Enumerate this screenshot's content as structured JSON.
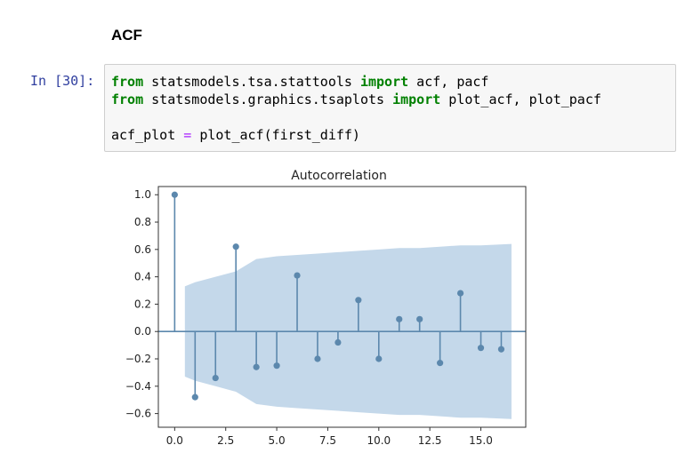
{
  "markdown": {
    "heading": "ACF"
  },
  "cell": {
    "prompt": "In [30]:",
    "code_lines": [
      [
        {
          "t": "from",
          "k": "kw"
        },
        {
          "t": " statsmodels.tsa.stattools ",
          "k": ""
        },
        {
          "t": "import",
          "k": "kw"
        },
        {
          "t": " acf, pacf",
          "k": ""
        }
      ],
      [
        {
          "t": "from",
          "k": "kw"
        },
        {
          "t": " statsmodels.graphics.tsaplots ",
          "k": ""
        },
        {
          "t": "import",
          "k": "kw"
        },
        {
          "t": " plot_acf, plot_pacf",
          "k": ""
        }
      ],
      [],
      [
        {
          "t": "acf_plot ",
          "k": ""
        },
        {
          "t": "=",
          "k": "op"
        },
        {
          "t": " plot_acf(first_diff)",
          "k": ""
        }
      ]
    ]
  },
  "chart_data": {
    "type": "stem",
    "title": "Autocorrelation",
    "xlabel": "",
    "ylabel": "",
    "xlim": [
      -0.8,
      17.2
    ],
    "ylim": [
      -0.7,
      1.06
    ],
    "xticks": [
      0.0,
      2.5,
      5.0,
      7.5,
      10.0,
      12.5,
      15.0
    ],
    "xtick_labels": [
      "0.0",
      "2.5",
      "5.0",
      "7.5",
      "10.0",
      "12.5",
      "15.0"
    ],
    "yticks": [
      1.0,
      0.8,
      0.6,
      0.4,
      0.2,
      0.0,
      -0.2,
      -0.4,
      -0.6
    ],
    "ytick_labels": [
      "1.0",
      "0.8",
      "0.6",
      "0.4",
      "0.2",
      "0.0",
      "−0.2",
      "−0.4",
      "−0.6"
    ],
    "grid": false,
    "lags": [
      0,
      1,
      2,
      3,
      4,
      5,
      6,
      7,
      8,
      9,
      10,
      11,
      12,
      13,
      14,
      15,
      16
    ],
    "values": [
      1.0,
      -0.48,
      -0.34,
      0.62,
      -0.26,
      -0.25,
      0.41,
      -0.2,
      -0.08,
      0.23,
      -0.2,
      0.09,
      0.09,
      -0.23,
      0.28,
      -0.12,
      -0.13
    ],
    "confidence_band": {
      "x": [
        0.5,
        1,
        2,
        3,
        4,
        5,
        6,
        7,
        8,
        9,
        10,
        11,
        12,
        13,
        14,
        15,
        16.5
      ],
      "upper": [
        0.33,
        0.36,
        0.4,
        0.44,
        0.53,
        0.55,
        0.56,
        0.57,
        0.58,
        0.59,
        0.6,
        0.61,
        0.61,
        0.62,
        0.63,
        0.63,
        0.64
      ],
      "lower": [
        -0.33,
        -0.36,
        -0.4,
        -0.44,
        -0.53,
        -0.55,
        -0.56,
        -0.57,
        -0.58,
        -0.59,
        -0.6,
        -0.61,
        -0.61,
        -0.62,
        -0.63,
        -0.63,
        -0.64
      ]
    },
    "colors": {
      "stem": "#5c88ad",
      "band": "#c4d8ea",
      "zero_line": "#5c88ad",
      "axes": "#333333"
    }
  }
}
